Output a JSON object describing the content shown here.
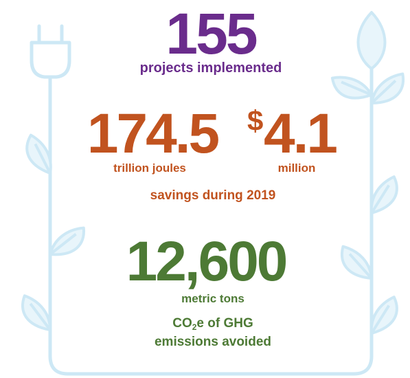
{
  "stats": {
    "projects": {
      "number": "155",
      "label": "projects implemented"
    },
    "energy": {
      "number": "174.5",
      "label": "trillion joules"
    },
    "money": {
      "symbol": "$",
      "number": "4.1",
      "label": "million"
    },
    "savings_caption": "savings during 2019",
    "emissions": {
      "number": "12,600",
      "label": "metric tons",
      "caption_parts": [
        "CO",
        "2",
        "e of GHG"
      ],
      "caption_line2": "emissions avoided"
    }
  }
}
